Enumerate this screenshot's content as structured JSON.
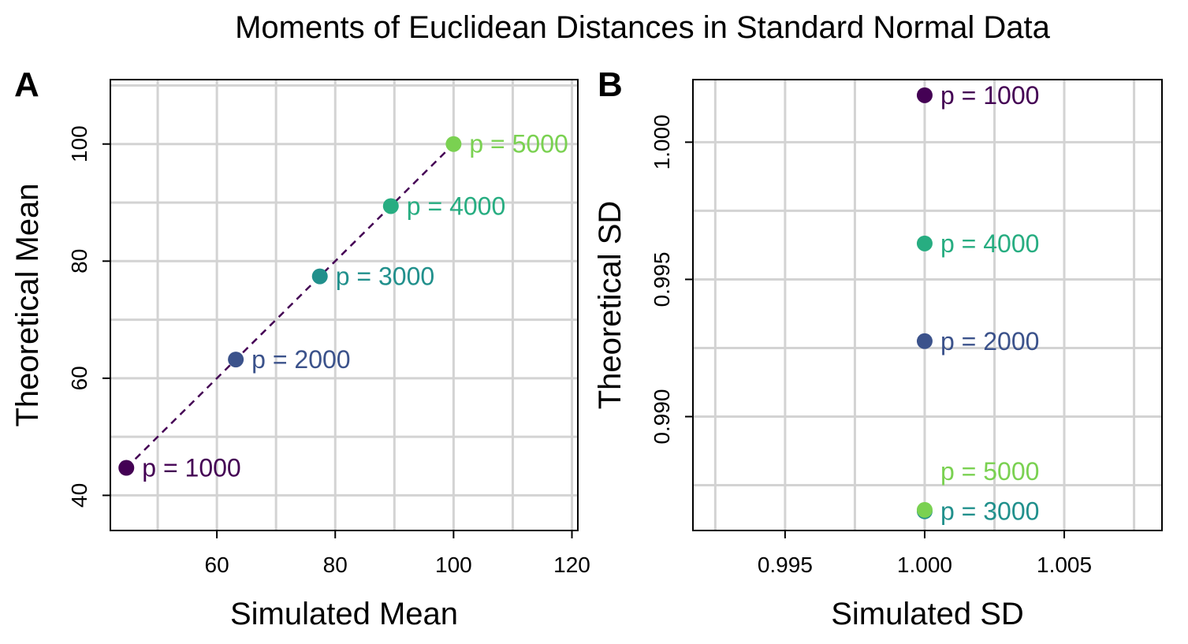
{
  "title": "Moments of Euclidean Distances in Standard Normal Data",
  "colors": {
    "p1000": "#440154",
    "p2000": "#3b528b",
    "p3000": "#21908c",
    "p4000": "#27ad81",
    "p5000": "#7ad151",
    "line": "#440154"
  },
  "chart_data": [
    {
      "panel": "A",
      "type": "scatter",
      "xlabel": "Simulated Mean",
      "ylabel": "Theoretical Mean",
      "xlim": [
        42,
        121
      ],
      "ylim": [
        34,
        111
      ],
      "xticks": [
        60,
        80,
        100,
        120
      ],
      "yticks": [
        40,
        60,
        80,
        100
      ],
      "xtick_labels": [
        "60",
        "80",
        "100",
        "120"
      ],
      "ytick_labels": [
        "40",
        "60",
        "80",
        "100"
      ],
      "grid": true,
      "line": {
        "style": "dashed",
        "connects": "points"
      },
      "points": [
        {
          "label": "p = 1000",
          "x": 44.7,
          "y": 44.7,
          "color": "p1000"
        },
        {
          "label": "p = 2000",
          "x": 63.2,
          "y": 63.2,
          "color": "p2000"
        },
        {
          "label": "p = 3000",
          "x": 77.4,
          "y": 77.4,
          "color": "p3000"
        },
        {
          "label": "p = 4000",
          "x": 89.4,
          "y": 89.4,
          "color": "p4000"
        },
        {
          "label": "p = 5000",
          "x": 100.0,
          "y": 100.0,
          "color": "p5000"
        }
      ]
    },
    {
      "panel": "B",
      "type": "scatter",
      "xlabel": "Simulated SD",
      "ylabel": "Theoretical SD",
      "xlim": [
        0.9917,
        1.0085
      ],
      "ylim": [
        0.98585,
        1.00228
      ],
      "xticks": [
        0.995,
        1.0,
        1.005
      ],
      "yticks": [
        0.99,
        0.995,
        1.0
      ],
      "xtick_labels": [
        "0.995",
        "1.000",
        "1.005"
      ],
      "ytick_labels": [
        "0.990",
        "0.995",
        "1.000"
      ],
      "grid": true,
      "points": [
        {
          "label": "p = 1000",
          "x": 1.0,
          "y": 1.00171,
          "color": "p1000"
        },
        {
          "label": "p = 2000",
          "x": 1.0,
          "y": 0.99275,
          "color": "p2000"
        },
        {
          "label": "p = 3000",
          "x": 1.0,
          "y": 0.98655,
          "color": "p3000"
        },
        {
          "label": "p = 4000",
          "x": 1.0,
          "y": 0.99631,
          "color": "p4000"
        },
        {
          "label": "p = 5000",
          "x": 1.0,
          "y": 0.9866,
          "color": "p5000",
          "label_offset": "above"
        }
      ]
    }
  ]
}
